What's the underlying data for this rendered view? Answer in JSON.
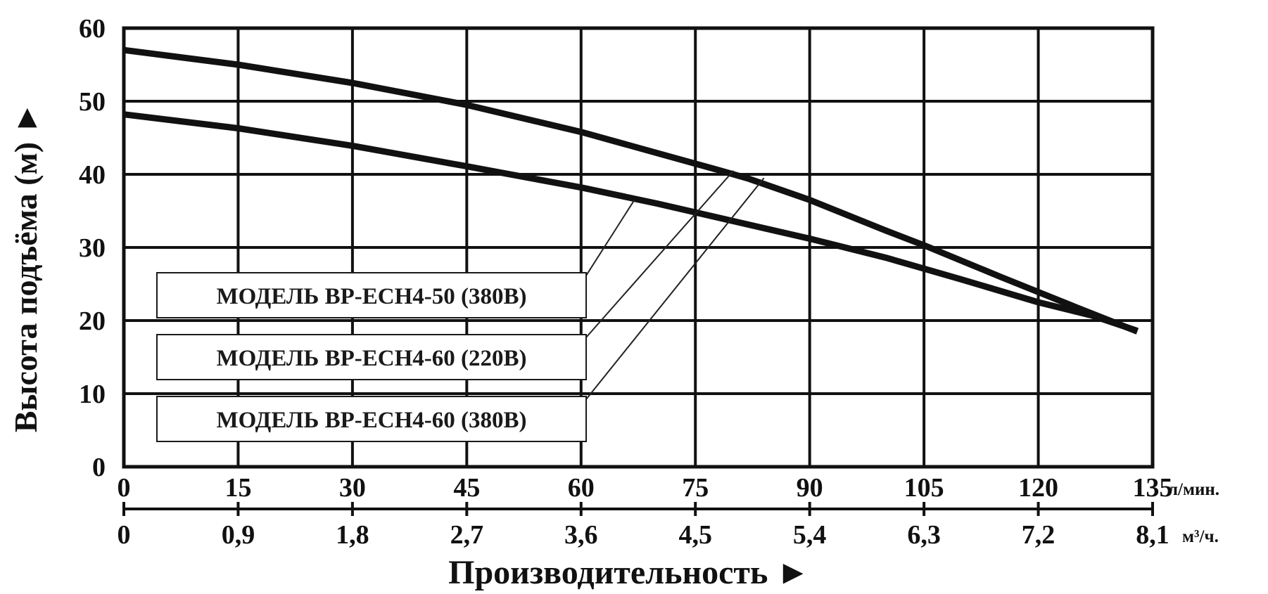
{
  "chart_data": {
    "type": "line",
    "xlabel": "Производительность ►",
    "ylabel": "Высота подъёма (м) ►",
    "x_unit_primary": "л/мин.",
    "x_unit_secondary": "м³/ч.",
    "xlim": [
      0,
      135
    ],
    "ylim": [
      0,
      60
    ],
    "grid": true,
    "x_ticks": [
      "0",
      "15",
      "30",
      "45",
      "60",
      "75",
      "90",
      "105",
      "120",
      "135"
    ],
    "x_ticks_secondary": [
      "0",
      "0,9",
      "1,8",
      "2,7",
      "3,6",
      "4,5",
      "5,4",
      "6,3",
      "7,2",
      "8,1"
    ],
    "y_ticks": [
      "0",
      "10",
      "20",
      "30",
      "40",
      "50",
      "60"
    ],
    "legend": [
      "МОДЕЛЬ BP-ECH4-50 (380В)",
      "МОДЕЛЬ BP-ECH4-60 (220В)",
      "МОДЕЛЬ BP-ECH4-60 (380В)"
    ],
    "legend_placement": "bottom-left",
    "series": [
      {
        "x": [
          0,
          15,
          30,
          45,
          60,
          70,
          80,
          90,
          100,
          110,
          120,
          127,
          133
        ],
        "y": [
          48.2,
          46.3,
          43.9,
          41.1,
          38.2,
          36.0,
          33.6,
          31.2,
          28.6,
          25.6,
          22.5,
          20.7,
          18.6
        ]
      },
      {
        "x": [
          0,
          15,
          30,
          45,
          60,
          70,
          78,
          82,
          90,
          100,
          105,
          115,
          125,
          133
        ],
        "y": [
          57.0,
          55.0,
          52.5,
          49.5,
          45.8,
          42.9,
          40.6,
          39.4,
          36.5,
          32.3,
          30.3,
          26.0,
          21.8,
          18.5
        ]
      }
    ]
  }
}
